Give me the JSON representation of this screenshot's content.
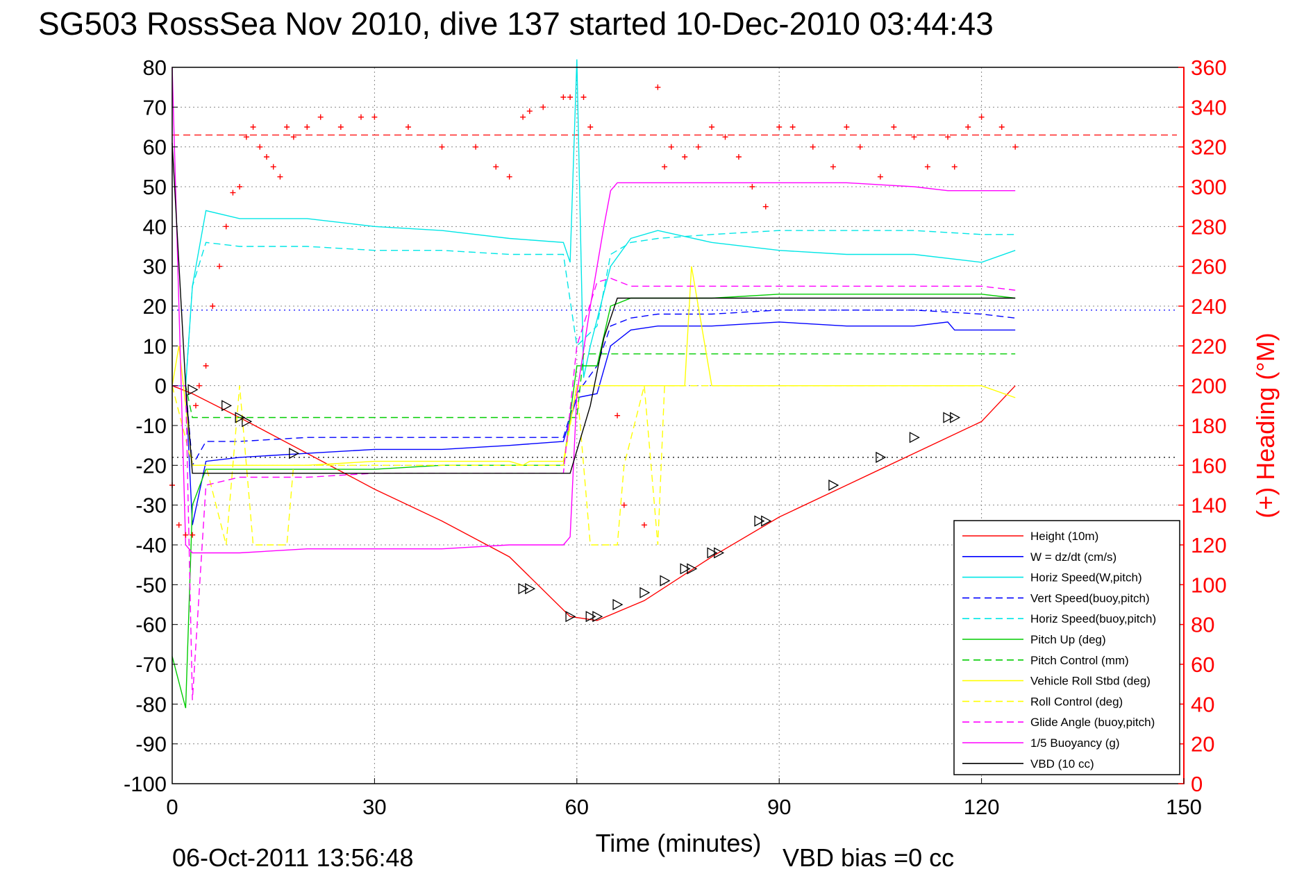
{
  "page": {
    "title": "SG503 RossSea Nov 2010, dive 137 started 10-Dec-2010 03:44:43",
    "timestamp": "06-Oct-2011 13:56:48",
    "vbd_bias": "VBD bias =0 cc"
  },
  "chart_data": {
    "type": "line",
    "title": "SG503 RossSea Nov 2010, dive 137 started 10-Dec-2010 03:44:43",
    "xlabel": "Time (minutes)",
    "ylabel": "",
    "y2label": "(+) Heading (°M)",
    "xlim": [
      0,
      150
    ],
    "ylim": [
      -100,
      80
    ],
    "y2lim": [
      0,
      360
    ],
    "xticks": [
      0,
      30,
      60,
      90,
      120,
      150
    ],
    "yticks": [
      80,
      70,
      60,
      50,
      40,
      30,
      20,
      10,
      0,
      -10,
      -20,
      -30,
      -40,
      -50,
      -60,
      -70,
      -80,
      -90,
      -100
    ],
    "y2ticks": [
      360,
      340,
      320,
      300,
      280,
      260,
      240,
      220,
      200,
      180,
      160,
      140,
      120,
      100,
      80,
      60,
      40,
      20,
      0
    ],
    "grid": true,
    "legend_position": "bottom-right",
    "reference_lines": [
      {
        "axis": "y2",
        "value": 326,
        "color": "#ff0000",
        "style": "dashed"
      },
      {
        "axis": "y",
        "value": 19,
        "color": "#0000ff",
        "style": "dotted"
      },
      {
        "axis": "y",
        "value": -18,
        "color": "#000000",
        "style": "dotted"
      }
    ],
    "series": [
      {
        "name": "Height (10m)",
        "color": "#ff0000",
        "style": "solid",
        "x": [
          0,
          3,
          10,
          20,
          30,
          40,
          50,
          59,
          63,
          70,
          80,
          90,
          100,
          110,
          120,
          125
        ],
        "y": [
          0,
          -2,
          -8,
          -17,
          -26,
          -34,
          -43,
          -58,
          -59,
          -54,
          -43,
          -33,
          -25,
          -17,
          -9,
          0
        ]
      },
      {
        "name": "W = dz/dt (cm/s)",
        "color": "#0000ff",
        "style": "solid",
        "x": [
          0,
          2,
          3,
          5,
          10,
          20,
          30,
          40,
          50,
          58,
          60,
          63,
          65,
          68,
          72,
          80,
          90,
          100,
          110,
          115,
          116,
          125
        ],
        "y": [
          0,
          0,
          -35,
          -19,
          -18,
          -17,
          -16,
          -16,
          -15,
          -14,
          -3,
          -2,
          10,
          14,
          15,
          15,
          16,
          15,
          15,
          16,
          14,
          14
        ]
      },
      {
        "name": "Horiz Speed(W,pitch)",
        "color": "#00e6e6",
        "style": "solid",
        "x": [
          0,
          2,
          3,
          5,
          10,
          20,
          30,
          40,
          50,
          58,
          59,
          60,
          61,
          62,
          65,
          68,
          72,
          80,
          90,
          100,
          110,
          120,
          125
        ],
        "y": [
          0,
          0,
          25,
          44,
          42,
          42,
          40,
          39,
          37,
          36,
          31,
          82,
          2,
          10,
          30,
          37,
          39,
          36,
          34,
          33,
          33,
          31,
          34
        ]
      },
      {
        "name": "Vert Speed(buoy,pitch)",
        "color": "#0000ff",
        "style": "dashed",
        "x": [
          0,
          2,
          3,
          5,
          10,
          20,
          30,
          40,
          50,
          58,
          60,
          63,
          65,
          68,
          72,
          80,
          90,
          100,
          110,
          120,
          125
        ],
        "y": [
          0,
          0,
          -20,
          -14,
          -14,
          -13,
          -13,
          -13,
          -13,
          -13,
          -2,
          5,
          15,
          17,
          18,
          18,
          19,
          19,
          19,
          18,
          17
        ]
      },
      {
        "name": "Horiz Speed(buoy,pitch)",
        "color": "#00e6e6",
        "style": "dashed",
        "x": [
          0,
          2,
          3,
          5,
          10,
          20,
          30,
          40,
          50,
          58,
          60,
          63,
          65,
          68,
          72,
          80,
          90,
          100,
          110,
          120,
          125
        ],
        "y": [
          0,
          0,
          25,
          36,
          35,
          35,
          34,
          34,
          33,
          33,
          10,
          15,
          33,
          36,
          37,
          38,
          39,
          39,
          39,
          38,
          38
        ]
      },
      {
        "name": "Pitch Up (deg)",
        "color": "#00cc00",
        "style": "solid",
        "x": [
          0,
          2,
          3,
          5,
          10,
          20,
          30,
          40,
          50,
          58,
          60,
          63,
          65,
          68,
          72,
          80,
          90,
          100,
          110,
          120,
          125
        ],
        "y": [
          -68,
          -81,
          -30,
          -21,
          -21,
          -21,
          -21,
          -20,
          -20,
          -20,
          5,
          5,
          20,
          22,
          22,
          22,
          23,
          23,
          23,
          23,
          22
        ]
      },
      {
        "name": "Pitch Control (mm)",
        "color": "#00cc00",
        "style": "dashed",
        "x": [
          0,
          2,
          3,
          5,
          10,
          60,
          61,
          65,
          70,
          120,
          125
        ],
        "y": [
          0,
          0,
          -8,
          -8,
          -8,
          -8,
          8,
          8,
          8,
          8,
          8
        ]
      },
      {
        "name": "Vehicle Roll Stbd (deg)",
        "color": "#ffff00",
        "style": "solid",
        "x": [
          0,
          1,
          2,
          3,
          10,
          20,
          30,
          40,
          50,
          52,
          53,
          58,
          60,
          63,
          65,
          68,
          70,
          76,
          77,
          80,
          90,
          100,
          110,
          120,
          125
        ],
        "y": [
          0,
          10,
          -5,
          -20,
          -20,
          -20,
          -19,
          -19,
          -19,
          -20,
          -19,
          -19,
          0,
          0,
          0,
          0,
          0,
          0,
          30,
          0,
          0,
          0,
          0,
          0,
          -3
        ]
      },
      {
        "name": "Roll Control (deg)",
        "color": "#ffff00",
        "style": "dashed",
        "x": [
          0,
          3,
          5,
          8,
          10,
          12,
          17,
          18,
          20,
          30,
          40,
          50,
          58,
          60,
          62,
          66,
          67,
          70,
          72,
          73,
          80,
          90,
          100,
          110,
          120
        ],
        "y": [
          0,
          -20,
          -20,
          -40,
          0,
          -40,
          -40,
          -20,
          -20,
          -20,
          -20,
          -20,
          -20,
          0,
          -40,
          -40,
          -20,
          0,
          -40,
          0,
          0,
          0,
          0,
          0,
          0
        ]
      },
      {
        "name": "Glide Angle (buoy,pitch)",
        "color": "#ff00ff",
        "style": "dashed",
        "x": [
          0,
          2,
          3,
          5,
          10,
          20,
          30,
          40,
          50,
          58,
          60,
          63,
          65,
          68,
          72,
          80,
          90,
          100,
          110,
          120,
          125
        ],
        "y": [
          0,
          0,
          -79,
          -25,
          -23,
          -23,
          -22,
          -22,
          -22,
          -22,
          10,
          26,
          27,
          25,
          25,
          25,
          25,
          25,
          25,
          25,
          24
        ]
      },
      {
        "name": "1/5 Buoyancy (g)",
        "color": "#ff00ff",
        "style": "solid",
        "x": [
          0,
          2,
          3,
          5,
          10,
          20,
          30,
          40,
          50,
          58,
          59,
          60,
          62,
          64,
          65,
          66,
          80,
          100,
          110,
          115,
          120,
          125
        ],
        "y": [
          80,
          -40,
          -42,
          -42,
          -42,
          -41,
          -41,
          -41,
          -40,
          -40,
          -38,
          -2,
          20,
          40,
          49,
          51,
          51,
          51,
          50,
          49,
          49,
          49
        ]
      },
      {
        "name": "VBD (10 cc)",
        "color": "#000000",
        "style": "solid",
        "x": [
          0,
          2,
          3,
          5,
          10,
          20,
          30,
          40,
          50,
          58,
          59,
          62,
          64,
          66,
          70,
          80,
          90,
          100,
          110,
          120,
          125
        ],
        "y": [
          61,
          0,
          -22,
          -22,
          -22,
          -22,
          -22,
          -22,
          -22,
          -22,
          -22,
          -5,
          12,
          22,
          22,
          22,
          22,
          22,
          22,
          22,
          22
        ]
      }
    ],
    "heading_points": {
      "name": "(+) Heading (°M)",
      "axis": "y2",
      "color": "#ff0000",
      "marker": "+",
      "x": [
        0,
        1,
        2,
        3,
        3.5,
        4,
        5,
        6,
        7,
        8,
        9,
        10,
        11,
        12,
        13,
        14,
        15,
        16,
        17,
        18,
        20,
        22,
        25,
        28,
        30,
        35,
        40,
        45,
        48,
        50,
        52,
        53,
        55,
        58,
        59,
        61,
        62,
        66,
        67,
        70,
        72,
        73,
        74,
        76,
        78,
        80,
        82,
        84,
        86,
        88,
        90,
        92,
        95,
        98,
        100,
        102,
        105,
        107,
        110,
        112,
        115,
        116,
        118,
        120,
        123,
        125
      ],
      "y": [
        150,
        130,
        125,
        125,
        190,
        200,
        210,
        240,
        260,
        280,
        297,
        300,
        325,
        330,
        320,
        315,
        310,
        305,
        330,
        325,
        330,
        335,
        330,
        335,
        335,
        330,
        320,
        320,
        310,
        305,
        335,
        338,
        340,
        345,
        345,
        345,
        330,
        185,
        140,
        130,
        350,
        310,
        320,
        315,
        320,
        330,
        325,
        315,
        300,
        290,
        330,
        330,
        320,
        310,
        330,
        320,
        305,
        330,
        325,
        310,
        325,
        310,
        330,
        335,
        330,
        320
      ]
    },
    "markers": {
      "color": "#000000",
      "x": [
        3,
        8,
        10,
        11,
        18,
        52,
        53,
        59,
        62,
        63,
        66,
        70,
        73,
        76,
        77,
        80,
        81,
        87,
        88,
        98,
        105,
        110,
        115,
        116
      ],
      "y": [
        -1,
        -5,
        -8,
        -9,
        -17,
        -51,
        -51,
        -58,
        -58,
        -58,
        -55,
        -52,
        -49,
        -46,
        -46,
        -42,
        -42,
        -34,
        -34,
        -25,
        -18,
        -13,
        -8,
        -8
      ]
    }
  },
  "colors": {
    "heading_axis": "#ff0000",
    "left_axis": "#000000",
    "grid": "#888888"
  }
}
